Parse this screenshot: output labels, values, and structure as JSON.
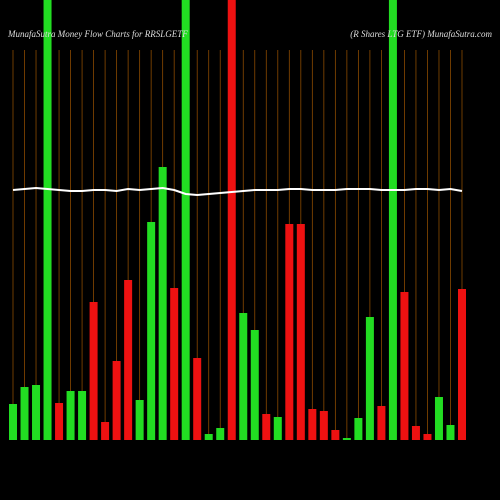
{
  "chart_data": {
    "type": "bar",
    "title": "MunafaSutra  Money Flow  Charts for RRSLGETF",
    "subtitle": "(R Shares LTG ETF) MunafaSutra.com",
    "categories": [
      null,
      null,
      null,
      null,
      null,
      null,
      null,
      null,
      null,
      null,
      null,
      null,
      null,
      null,
      null,
      null,
      null,
      null,
      null,
      null,
      null,
      null,
      null,
      null,
      null,
      null,
      null,
      null,
      null,
      null,
      null,
      null,
      null,
      null,
      null,
      null,
      null,
      null,
      null,
      null
    ],
    "values": [
      36,
      53,
      55,
      440,
      37,
      49,
      49,
      138,
      18,
      79,
      160,
      40,
      218,
      273,
      152,
      440,
      82,
      6,
      12,
      440,
      127,
      110,
      26,
      23,
      216,
      216,
      31,
      29,
      10,
      2,
      22,
      123,
      34,
      440,
      148,
      14,
      6,
      43,
      15,
      151
    ],
    "colors": [
      "#22dd22",
      "#22dd22",
      "#22dd22",
      "#22dd22",
      "#ee1111",
      "#22dd22",
      "#22dd22",
      "#ee1111",
      "#ee1111",
      "#ee1111",
      "#ee1111",
      "#22dd22",
      "#22dd22",
      "#22dd22",
      "#ee1111",
      "#22dd22",
      "#ee1111",
      "#22dd22",
      "#22dd22",
      "#ee1111",
      "#22dd22",
      "#22dd22",
      "#ee1111",
      "#22dd22",
      "#ee1111",
      "#ee1111",
      "#ee1111",
      "#ee1111",
      "#ee1111",
      "#22dd22",
      "#22dd22",
      "#22dd22",
      "#ee1111",
      "#22dd22",
      "#ee1111",
      "#ee1111",
      "#ee1111",
      "#22dd22",
      "#22dd22",
      "#ee1111"
    ],
    "line": {
      "color": "#ffffff",
      "values": [
        250,
        251,
        252,
        251,
        250,
        249,
        249,
        250,
        250,
        249,
        251,
        250,
        251,
        252,
        250,
        246,
        245,
        246,
        247,
        248,
        249,
        250,
        250,
        250,
        251,
        251,
        250,
        250,
        250,
        251,
        251,
        251,
        250,
        250,
        250,
        251,
        251,
        250,
        251,
        249
      ]
    },
    "ylim": [
      0,
      440
    ],
    "grid": true,
    "grid_color": "#8a4a00"
  }
}
